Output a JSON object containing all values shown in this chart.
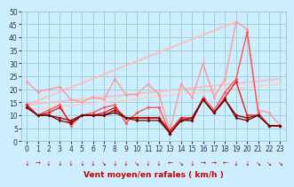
{
  "background_color": "#cceeff",
  "grid_color": "#99cccc",
  "xlabel": "Vent moyen/en rafales ( km/h )",
  "xlim": [
    -0.5,
    23.5
  ],
  "ylim": [
    0,
    50
  ],
  "yticks": [
    0,
    5,
    10,
    15,
    20,
    25,
    30,
    35,
    40,
    45,
    50
  ],
  "xticks": [
    0,
    1,
    2,
    3,
    4,
    5,
    6,
    7,
    8,
    9,
    10,
    11,
    12,
    13,
    14,
    15,
    16,
    17,
    18,
    19,
    20,
    21,
    22,
    23
  ],
  "series": [
    {
      "x": [
        0,
        1,
        2,
        3,
        4,
        5,
        6,
        7,
        8,
        9,
        10,
        11,
        12,
        13,
        14,
        15,
        16,
        17,
        18,
        19,
        20,
        21,
        22,
        23
      ],
      "y": [
        23,
        19,
        20,
        21,
        16,
        15,
        17,
        16,
        24,
        18,
        18,
        22,
        18,
        4,
        22,
        17,
        30,
        17,
        24,
        46,
        43,
        12,
        11,
        6
      ],
      "color": "#ff9999",
      "lw": 1.0,
      "marker": "D",
      "ms": 2.0,
      "zorder": 3
    },
    {
      "x": [
        0,
        1,
        2,
        3,
        4,
        5,
        6,
        7,
        8,
        9,
        10,
        11,
        12,
        13,
        14,
        15,
        16,
        17,
        18,
        19,
        20,
        21,
        22,
        23
      ],
      "y": [
        14,
        10,
        12,
        14,
        6,
        10,
        11,
        13,
        14,
        7,
        11,
        13,
        13,
        3,
        9,
        8,
        17,
        12,
        19,
        24,
        42,
        11,
        6,
        6
      ],
      "color": "#ff5555",
      "lw": 1.0,
      "marker": "D",
      "ms": 2.0,
      "zorder": 3
    },
    {
      "x": [
        0,
        1,
        2,
        3,
        4,
        5,
        6,
        7,
        8,
        9,
        10,
        11,
        12,
        13,
        14,
        15,
        16,
        17,
        18,
        19,
        20,
        21,
        22,
        23
      ],
      "y": [
        14,
        10,
        11,
        13,
        7,
        10,
        10,
        11,
        13,
        9,
        9,
        9,
        9,
        4,
        9,
        9,
        16,
        11,
        17,
        23,
        10,
        10,
        6,
        6
      ],
      "color": "#dd2222",
      "lw": 1.0,
      "marker": "D",
      "ms": 2.0,
      "zorder": 4
    },
    {
      "x": [
        0,
        1,
        2,
        3,
        4,
        5,
        6,
        7,
        8,
        9,
        10,
        11,
        12,
        13,
        14,
        15,
        16,
        17,
        18,
        19,
        20,
        21,
        22,
        23
      ],
      "y": [
        13,
        10,
        10,
        9,
        8,
        10,
        10,
        10,
        12,
        9,
        9,
        9,
        9,
        3,
        8,
        9,
        16,
        11,
        16,
        10,
        9,
        10,
        6,
        6
      ],
      "color": "#aa0000",
      "lw": 1.0,
      "marker": "D",
      "ms": 2.0,
      "zorder": 4
    },
    {
      "x": [
        0,
        1,
        2,
        3,
        4,
        5,
        6,
        7,
        8,
        9,
        10,
        11,
        12,
        13,
        14,
        15,
        16,
        17,
        18,
        19,
        20,
        21,
        22,
        23
      ],
      "y": [
        13,
        10,
        10,
        8,
        7,
        10,
        10,
        10,
        11,
        9,
        8,
        8,
        8,
        3,
        8,
        8,
        16,
        11,
        16,
        9,
        8,
        10,
        6,
        6
      ],
      "color": "#660000",
      "lw": 0.9,
      "marker": "D",
      "ms": 1.8,
      "zorder": 4
    },
    {
      "x": [
        0,
        19
      ],
      "y": [
        14,
        46
      ],
      "color": "#ffbbbb",
      "lw": 1.3,
      "marker": null,
      "ms": 0,
      "zorder": 2
    },
    {
      "x": [
        0,
        23
      ],
      "y": [
        14,
        24
      ],
      "color": "#ffbbbb",
      "lw": 1.3,
      "marker": null,
      "ms": 0,
      "zorder": 2
    },
    {
      "x": [
        0,
        23
      ],
      "y": [
        12,
        22
      ],
      "color": "#ffcccc",
      "lw": 1.1,
      "marker": null,
      "ms": 0,
      "zorder": 2
    }
  ],
  "wind_arrows": {
    "color": "#cc0000",
    "symbols": [
      "↓",
      "→",
      "↓",
      "↓",
      "↓",
      "↓",
      "↓",
      "↘",
      "↓",
      "↓",
      "↘",
      "↓",
      "↓",
      "←",
      "↘",
      "↓",
      "→",
      "→",
      "←",
      "↓",
      "↓",
      "↘",
      "↘",
      "↘"
    ]
  }
}
